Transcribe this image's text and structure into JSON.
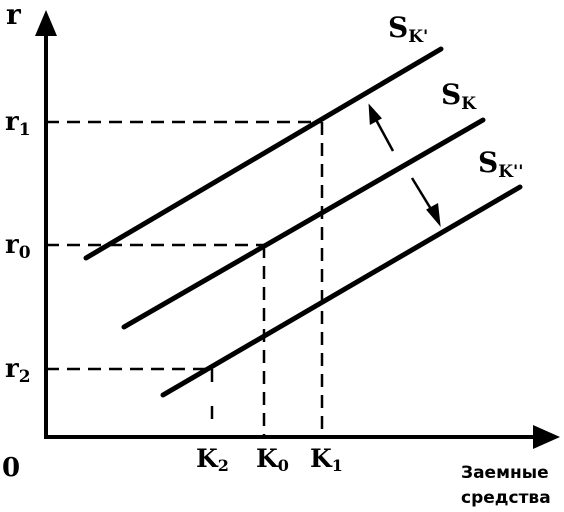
{
  "axes": {
    "y_label": "r",
    "origin_label": "0",
    "x_label_line1": "Заемные",
    "x_label_line2": "средства"
  },
  "curves": {
    "sk_prime": {
      "main": "S",
      "sub": "K'"
    },
    "sk": {
      "main": "S",
      "sub": "K"
    },
    "sk_double": {
      "main": "S",
      "sub": "K''"
    }
  },
  "y_ticks": {
    "r1": {
      "main": "r",
      "sub": "1"
    },
    "r0": {
      "main": "r",
      "sub": "0"
    },
    "r2": {
      "main": "r",
      "sub": "2"
    }
  },
  "x_ticks": {
    "k2": {
      "main": "K",
      "sub": "2"
    },
    "k0": {
      "main": "K",
      "sub": "0"
    },
    "k1": {
      "main": "K",
      "sub": "1"
    }
  }
}
